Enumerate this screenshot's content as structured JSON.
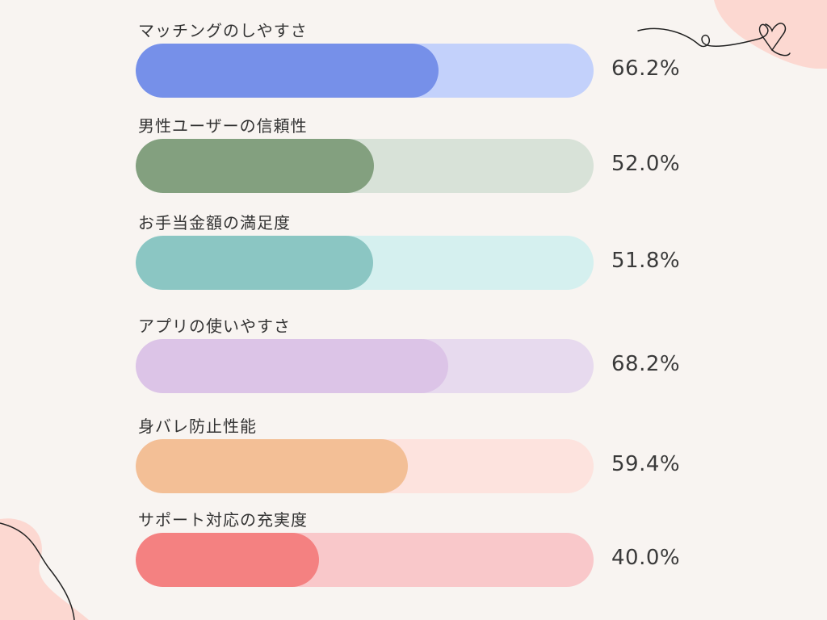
{
  "chart_data": {
    "type": "bar",
    "orientation": "horizontal",
    "categories": [
      "マッチングのしやすさ",
      "男性ユーザーの信頼性",
      "お手当金額の満足度",
      "アプリの使いやすさ",
      "身バレ防止性能",
      "サポート対応の充実度"
    ],
    "values": [
      66.2,
      52.0,
      51.8,
      68.2,
      59.4,
      40.0
    ],
    "value_labels": [
      "66.2%",
      "52.0%",
      "51.8%",
      "68.2%",
      "59.4%",
      "40.0%"
    ],
    "xlim": [
      0,
      100
    ],
    "unit": "%",
    "grid": false,
    "legend": "none",
    "colors": {
      "fill": [
        "#7690e9",
        "#83a07f",
        "#8bc6c3",
        "#dcc4e7",
        "#f3bf96",
        "#f48181"
      ],
      "track": [
        "#c3d1fb",
        "#d8e2d8",
        "#d5f0ef",
        "#e7daee",
        "#fde3de",
        "#f9c8ca"
      ]
    }
  },
  "decoration": {
    "accent_blob": "#fcd8d1",
    "line": "#222222",
    "icons": [
      "heart-swirl-icon"
    ]
  }
}
